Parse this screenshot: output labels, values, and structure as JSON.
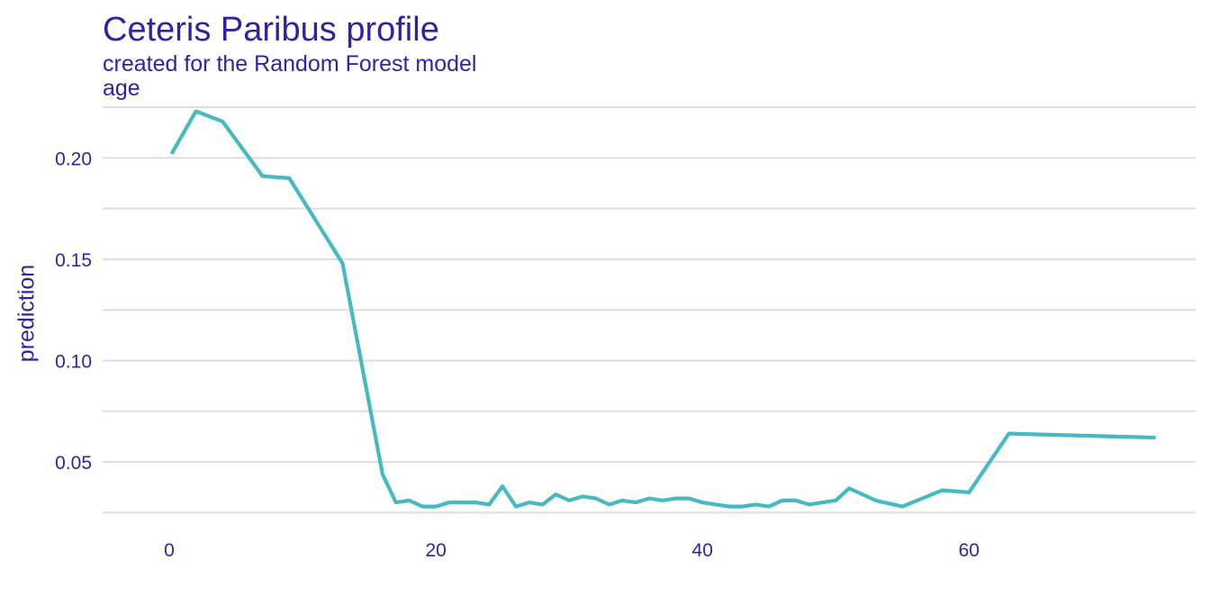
{
  "chart_data": {
    "type": "line",
    "title": "Ceteris Paribus profile",
    "subtitle": "created for the Random Forest model",
    "panel_label": "age",
    "xlabel": "",
    "ylabel": "prediction",
    "xlim": [
      -5,
      77
    ],
    "ylim": [
      0.0225,
      0.2255
    ],
    "x_ticks": [
      0,
      20,
      40,
      60
    ],
    "x_tick_labels": [
      "0",
      "20",
      "40",
      "60"
    ],
    "y_ticks": [
      0.05,
      0.1,
      0.15,
      0.2
    ],
    "y_tick_labels": [
      "0.05",
      "0.10",
      "0.15",
      "0.20"
    ],
    "y_minor_gridlines": [
      0.025,
      0.075,
      0.125,
      0.175,
      0.225
    ],
    "grid": "horizontal",
    "line_color": "#46bac2",
    "text_color": "#371ea3",
    "grid_color": "#dddddd",
    "series": [
      {
        "x": [
          0.17,
          2,
          4,
          7,
          9,
          13,
          16,
          17,
          18,
          19,
          20,
          21,
          22,
          23,
          24,
          25,
          26,
          27,
          28,
          29,
          30,
          31,
          32,
          33,
          34,
          35,
          36,
          37,
          38,
          39,
          40,
          41,
          42,
          43,
          44,
          45,
          46,
          47,
          48,
          49,
          50,
          51,
          53,
          55,
          58,
          60,
          63,
          74
        ],
        "y": [
          0.202,
          0.223,
          0.218,
          0.191,
          0.19,
          0.148,
          0.044,
          0.03,
          0.031,
          0.028,
          0.028,
          0.03,
          0.03,
          0.03,
          0.029,
          0.038,
          0.028,
          0.03,
          0.029,
          0.034,
          0.031,
          0.033,
          0.032,
          0.029,
          0.031,
          0.03,
          0.032,
          0.031,
          0.032,
          0.032,
          0.03,
          0.029,
          0.028,
          0.028,
          0.029,
          0.028,
          0.031,
          0.031,
          0.029,
          0.03,
          0.031,
          0.037,
          0.031,
          0.028,
          0.036,
          0.035,
          0.064,
          0.062
        ]
      }
    ]
  }
}
